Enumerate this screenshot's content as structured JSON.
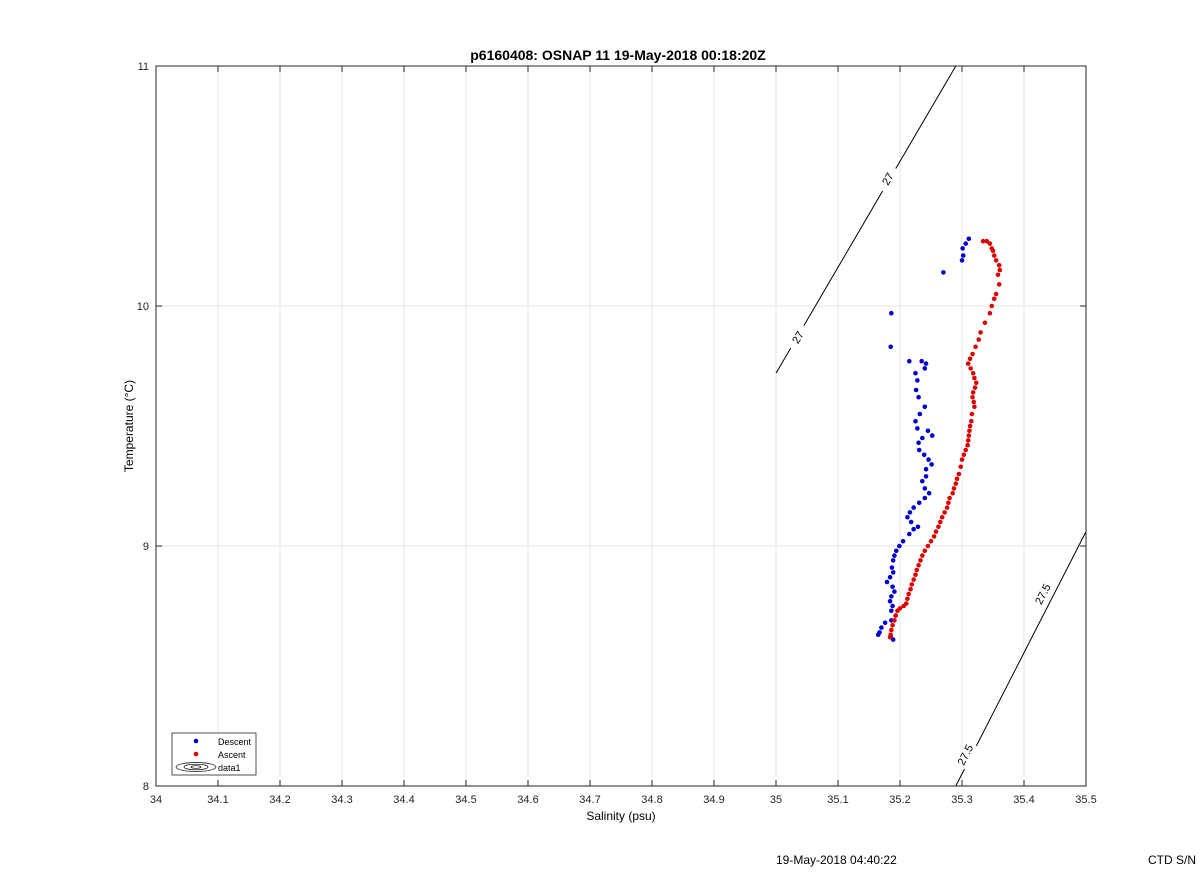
{
  "chart_data": {
    "type": "scatter",
    "title": "p6160408: OSNAP 11 19-May-2018 00:18:20Z",
    "xlabel": "Salinity (psu)",
    "ylabel": "Temperature (°C)",
    "xlim": [
      34,
      35.5
    ],
    "ylim": [
      8,
      11
    ],
    "grid": true,
    "legend_position": "bottom-left",
    "x_ticks": [
      "34",
      "34.1",
      "34.2",
      "34.3",
      "34.4",
      "34.5",
      "34.6",
      "34.7",
      "34.8",
      "34.9",
      "35",
      "35.1",
      "35.2",
      "35.3",
      "35.4",
      "35.5"
    ],
    "y_ticks": [
      "8",
      "9",
      "10",
      "11"
    ],
    "series": [
      {
        "name": "Descent",
        "color": "#0000cc",
        "points": [
          [
            35.311,
            10.28
          ],
          [
            35.306,
            10.26
          ],
          [
            35.301,
            10.24
          ],
          [
            35.302,
            10.21
          ],
          [
            35.3,
            10.19
          ],
          [
            35.27,
            10.14
          ],
          [
            35.186,
            9.97
          ],
          [
            35.185,
            9.83
          ],
          [
            35.215,
            9.77
          ],
          [
            35.235,
            9.77
          ],
          [
            35.242,
            9.76
          ],
          [
            35.24,
            9.74
          ],
          [
            35.225,
            9.72
          ],
          [
            35.228,
            9.69
          ],
          [
            35.226,
            9.65
          ],
          [
            35.23,
            9.62
          ],
          [
            35.24,
            9.58
          ],
          [
            35.232,
            9.55
          ],
          [
            35.225,
            9.52
          ],
          [
            35.228,
            9.49
          ],
          [
            35.245,
            9.48
          ],
          [
            35.252,
            9.46
          ],
          [
            35.236,
            9.45
          ],
          [
            35.23,
            9.43
          ],
          [
            35.231,
            9.4
          ],
          [
            35.239,
            9.38
          ],
          [
            35.246,
            9.36
          ],
          [
            35.251,
            9.34
          ],
          [
            35.242,
            9.32
          ],
          [
            35.242,
            9.29
          ],
          [
            35.236,
            9.27
          ],
          [
            35.24,
            9.24
          ],
          [
            35.247,
            9.22
          ],
          [
            35.24,
            9.2
          ],
          [
            35.231,
            9.18
          ],
          [
            35.222,
            9.16
          ],
          [
            35.216,
            9.14
          ],
          [
            35.212,
            9.12
          ],
          [
            35.218,
            9.1
          ],
          [
            35.229,
            9.08
          ],
          [
            35.222,
            9.07
          ],
          [
            35.215,
            9.05
          ],
          [
            35.205,
            9.02
          ],
          [
            35.199,
            9.0
          ],
          [
            35.194,
            8.98
          ],
          [
            35.191,
            8.96
          ],
          [
            35.189,
            8.94
          ],
          [
            35.187,
            8.91
          ],
          [
            35.189,
            8.89
          ],
          [
            35.184,
            8.87
          ],
          [
            35.179,
            8.85
          ],
          [
            35.188,
            8.83
          ],
          [
            35.191,
            8.81
          ],
          [
            35.186,
            8.79
          ],
          [
            35.184,
            8.77
          ],
          [
            35.188,
            8.75
          ],
          [
            35.186,
            8.73
          ],
          [
            35.193,
            8.71
          ],
          [
            35.186,
            8.69
          ],
          [
            35.176,
            8.68
          ],
          [
            35.17,
            8.66
          ],
          [
            35.167,
            8.64
          ],
          [
            35.165,
            8.63
          ],
          [
            35.185,
            8.62
          ],
          [
            35.189,
            8.61
          ]
        ]
      },
      {
        "name": "Ascent",
        "color": "#dd0000",
        "points": [
          [
            35.334,
            10.27
          ],
          [
            35.34,
            10.27
          ],
          [
            35.345,
            10.26
          ],
          [
            35.348,
            10.24
          ],
          [
            35.35,
            10.23
          ],
          [
            35.352,
            10.21
          ],
          [
            35.355,
            10.19
          ],
          [
            35.36,
            10.17
          ],
          [
            35.361,
            10.15
          ],
          [
            35.358,
            10.13
          ],
          [
            35.36,
            10.09
          ],
          [
            35.355,
            10.05
          ],
          [
            35.352,
            10.03
          ],
          [
            35.348,
            10.0
          ],
          [
            35.345,
            9.97
          ],
          [
            35.337,
            9.93
          ],
          [
            35.33,
            9.89
          ],
          [
            35.327,
            9.86
          ],
          [
            35.322,
            9.83
          ],
          [
            35.317,
            9.8
          ],
          [
            35.313,
            9.78
          ],
          [
            35.31,
            9.76
          ],
          [
            35.314,
            9.74
          ],
          [
            35.318,
            9.72
          ],
          [
            35.32,
            9.7
          ],
          [
            35.323,
            9.68
          ],
          [
            35.321,
            9.66
          ],
          [
            35.318,
            9.64
          ],
          [
            35.317,
            9.62
          ],
          [
            35.319,
            9.6
          ],
          [
            35.32,
            9.58
          ],
          [
            35.316,
            9.55
          ],
          [
            35.315,
            9.52
          ],
          [
            35.313,
            9.5
          ],
          [
            35.312,
            9.48
          ],
          [
            35.311,
            9.46
          ],
          [
            35.31,
            9.44
          ],
          [
            35.309,
            9.42
          ],
          [
            35.306,
            9.4
          ],
          [
            35.303,
            9.38
          ],
          [
            35.3,
            9.36
          ],
          [
            35.298,
            9.33
          ],
          [
            35.295,
            9.3
          ],
          [
            35.292,
            9.28
          ],
          [
            35.29,
            9.26
          ],
          [
            35.287,
            9.24
          ],
          [
            35.285,
            9.22
          ],
          [
            35.28,
            9.2
          ],
          [
            35.278,
            9.18
          ],
          [
            35.276,
            9.16
          ],
          [
            35.272,
            9.14
          ],
          [
            35.268,
            9.12
          ],
          [
            35.265,
            9.1
          ],
          [
            35.262,
            9.08
          ],
          [
            35.258,
            9.06
          ],
          [
            35.255,
            9.04
          ],
          [
            35.25,
            9.02
          ],
          [
            35.245,
            9.0
          ],
          [
            35.24,
            8.98
          ],
          [
            35.236,
            8.96
          ],
          [
            35.233,
            8.94
          ],
          [
            35.23,
            8.92
          ],
          [
            35.227,
            8.9
          ],
          [
            35.225,
            8.88
          ],
          [
            35.222,
            8.86
          ],
          [
            35.219,
            8.84
          ],
          [
            35.217,
            8.82
          ],
          [
            35.214,
            8.8
          ],
          [
            35.212,
            8.78
          ],
          [
            35.21,
            8.76
          ],
          [
            35.206,
            8.75
          ],
          [
            35.2,
            8.74
          ],
          [
            35.196,
            8.73
          ],
          [
            35.193,
            8.71
          ],
          [
            35.191,
            8.69
          ],
          [
            35.188,
            8.67
          ],
          [
            35.186,
            8.65
          ],
          [
            35.185,
            8.63
          ],
          [
            35.184,
            8.62
          ]
        ]
      }
    ],
    "contours": [
      {
        "label": "27",
        "from": [
          35.0,
          9.72
        ],
        "to": [
          35.29,
          11.0
        ],
        "label_points": [
          [
            35.035,
            9.87
          ],
          [
            35.18,
            10.53
          ]
        ]
      },
      {
        "label": "27.5",
        "from": [
          35.29,
          8.0
        ],
        "to": [
          35.5,
          9.06
        ],
        "label_points": [
          [
            35.305,
            8.13
          ],
          [
            35.43,
            8.8
          ]
        ]
      }
    ],
    "legend": {
      "entries": [
        {
          "label": "Descent",
          "color": "#0000cc"
        },
        {
          "label": "Ascent",
          "color": "#dd0000"
        },
        {
          "label": "data1",
          "color": "#000000"
        }
      ]
    }
  },
  "footer": {
    "timestamp": "19-May-2018 04:40:22",
    "ctd_label": "CTD S/N"
  }
}
